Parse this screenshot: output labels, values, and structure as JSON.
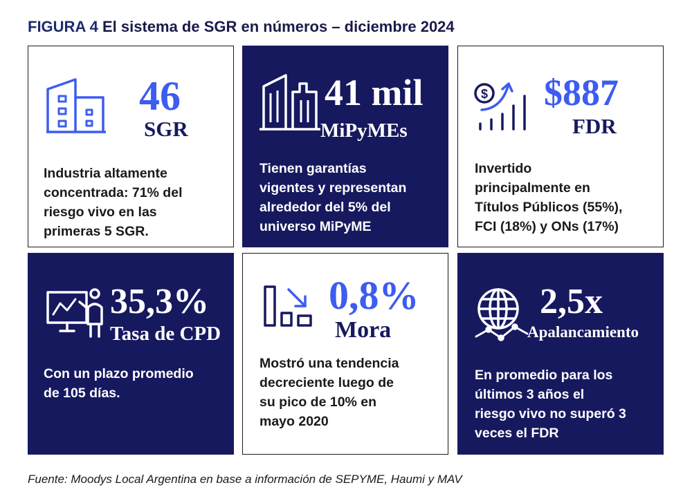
{
  "title": {
    "figure": "FIGURA 4",
    "text": "El sistema de SGR en números – diciembre 2024"
  },
  "cards": [
    {
      "icon": "buildings-icon",
      "number": "46",
      "label": "SGR",
      "description": "Industria altamente\nconcentrada: 71% del\nriesgo vivo en las\nprimeras 5 SGR."
    },
    {
      "icon": "skyscrapers-icon",
      "number": "41 mil",
      "label": "MiPyMEs",
      "description": "Tienen garantías\nvigentes y representan\nalrededor del 5% del\nuniverso MiPyME"
    },
    {
      "icon": "money-growth-icon",
      "number": "$887",
      "label": "FDR",
      "description": "Invertido\nprincipalmente en\nTítulos Públicos (55%),\nFCI (18%) y ONs (17%)"
    },
    {
      "icon": "presentation-icon",
      "number": "35,3%",
      "label": "Tasa de CPD",
      "description": "Con un plazo promedio\nde 105 días."
    },
    {
      "icon": "decrease-icon",
      "number": "0,8%",
      "label": "Mora",
      "description": "Mostró una tendencia\ndecreciente luego de\nsu pico de 10% en\nmayo 2020"
    },
    {
      "icon": "globe-network-icon",
      "number": "2,5x",
      "label": "Apalancamiento",
      "description": "En promedio para los\núltimos 3 años el\nriesgo vivo no superó 3\nveces el FDR"
    }
  ],
  "source": "Fuente: Moodys Local Argentina en base a información de SEPYME, Haumi y MAV",
  "colors": {
    "navy": "#17195f",
    "accent_blue": "#3d5cf0"
  }
}
